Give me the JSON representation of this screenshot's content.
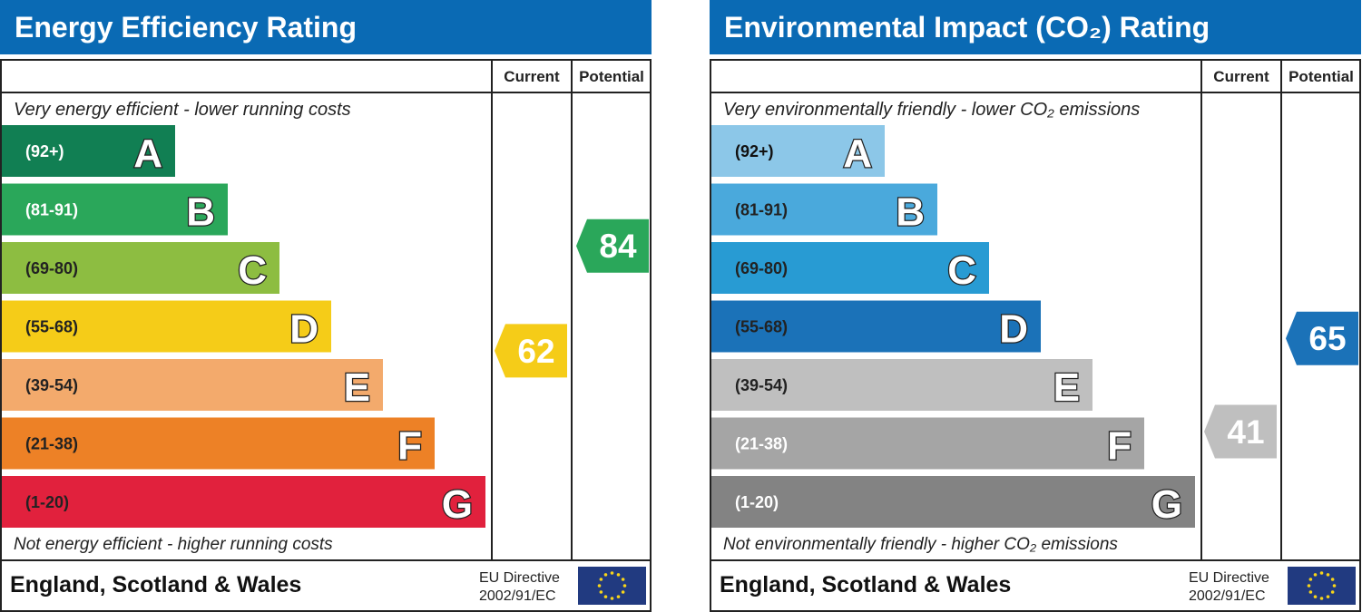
{
  "chart_data": [
    {
      "type": "bar",
      "title": "Energy Efficiency Rating",
      "columns": [
        "Current",
        "Potential"
      ],
      "top_label": "Very energy efficient - lower running costs",
      "bottom_label": "Not energy efficient - higher running costs",
      "footer_region": "England, Scotland & Wales",
      "footer_directive": [
        "EU Directive",
        "2002/91/EC"
      ],
      "bands": [
        {
          "letter": "A",
          "range": "(92+)",
          "lo": 92,
          "hi": 100,
          "color": "#117f53",
          "text": "#ffffff"
        },
        {
          "letter": "B",
          "range": "(81-91)",
          "lo": 81,
          "hi": 91,
          "color": "#2aa75a",
          "text": "#ffffff"
        },
        {
          "letter": "C",
          "range": "(69-80)",
          "lo": 69,
          "hi": 80,
          "color": "#8dbd41",
          "text": "#222222"
        },
        {
          "letter": "D",
          "range": "(55-68)",
          "lo": 55,
          "hi": 68,
          "color": "#f5cc18",
          "text": "#222222"
        },
        {
          "letter": "E",
          "range": "(39-54)",
          "lo": 39,
          "hi": 54,
          "color": "#f3aa6c",
          "text": "#222222"
        },
        {
          "letter": "F",
          "range": "(21-38)",
          "lo": 21,
          "hi": 38,
          "color": "#ed8126",
          "text": "#222222"
        },
        {
          "letter": "G",
          "range": "(1-20)",
          "lo": 1,
          "hi": 20,
          "color": "#e1213d",
          "text": "#222222"
        }
      ],
      "current": {
        "value": 62,
        "band": "D",
        "color": "#f5cc18"
      },
      "potential": {
        "value": 84,
        "band": "B",
        "color": "#2aa75a"
      }
    },
    {
      "type": "bar",
      "title": "Environmental Impact (CO₂) Rating",
      "columns": [
        "Current",
        "Potential"
      ],
      "top_label": "Very environmentally friendly - lower CO₂ emissions",
      "bottom_label": "Not environmentally friendly - higher CO₂ emissions",
      "footer_region": "England, Scotland & Wales",
      "footer_directive": [
        "EU Directive",
        "2002/91/EC"
      ],
      "bands": [
        {
          "letter": "A",
          "range": "(92+)",
          "lo": 92,
          "hi": 100,
          "color": "#8cc7e8",
          "text": "#111111"
        },
        {
          "letter": "B",
          "range": "(81-91)",
          "lo": 81,
          "hi": 91,
          "color": "#4aa9dc",
          "text": "#222222"
        },
        {
          "letter": "C",
          "range": "(69-80)",
          "lo": 69,
          "hi": 80,
          "color": "#289bd3",
          "text": "#222222"
        },
        {
          "letter": "D",
          "range": "(55-68)",
          "lo": 55,
          "hi": 68,
          "color": "#1b72b8",
          "text": "#222222"
        },
        {
          "letter": "E",
          "range": "(39-54)",
          "lo": 39,
          "hi": 54,
          "color": "#bfbfbf",
          "text": "#222222"
        },
        {
          "letter": "F",
          "range": "(21-38)",
          "lo": 21,
          "hi": 38,
          "color": "#a5a5a5",
          "text": "#ffffff"
        },
        {
          "letter": "G",
          "range": "(1-20)",
          "lo": 1,
          "hi": 20,
          "color": "#838383",
          "text": "#ffffff"
        }
      ],
      "current": {
        "value": 41,
        "band": "E",
        "color": "#bfbfbf"
      },
      "potential": {
        "value": 65,
        "band": "D",
        "color": "#1b72b8"
      }
    }
  ],
  "colors": {
    "header": "#0a6ab4",
    "eu_flag": "#213a80",
    "eu_stars": "#f7d41a"
  }
}
